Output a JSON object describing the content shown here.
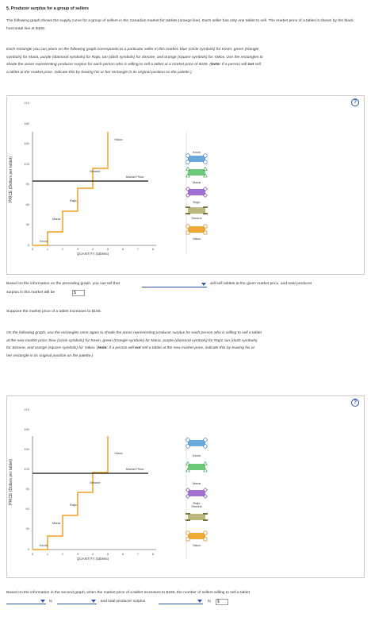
{
  "title": "5. Producer surplus for a group of sellers",
  "intro": "The following graph shows the supply curve for a group of sellers in the Canadian market for tablets (orange line). Each seller has only one tablet to sell. The market price of a tablet is shown by the black horizontal line at $105.",
  "instructions1": {
    "line1": "Each rectangle you can place on the following graph corresponds to a particular seller in this market: blue (circle symbols) for Kevin, green (triangle",
    "line2": "symbols) for Maria, purple (diamond symbols) for Rajiv, tan (dash symbols) for Simone, and orange (square symbols) for Yakov. Use the rectangles to",
    "line3a": "shade the areas representing producer surplus for each person who is willing to sell a tablet at a market price of $105. (",
    "note_label": "Note:",
    "line3b": " If a person will ",
    "not_label": "not",
    "line3c": " sell",
    "line4": "a tablet at the market price, indicate this by leaving his or her rectangle in its original position on the palette.)"
  },
  "help_symbol": "?",
  "graph1": {
    "ylabel": "PRICE (Dollars per tablet)",
    "xlabel": "QUANTITY (tablets)",
    "yticks": [
      "0",
      "30",
      "60",
      "90",
      "120",
      "150",
      "180",
      "210",
      "240"
    ],
    "xticks": [
      "0",
      "1",
      "2",
      "3",
      "4",
      "5",
      "6",
      "7",
      "8"
    ],
    "step_labels": [
      "Kevin",
      "Maria",
      "Rajiv",
      "Simone",
      "Yakov"
    ],
    "market_price_label": "Market Price"
  },
  "graph2": {
    "ylabel": "PRICE (Dollars per tablet)",
    "xlabel": "QUANTITY (tablets)",
    "yticks": [
      "0",
      "30",
      "60",
      "90",
      "120",
      "150",
      "180",
      "210",
      "240"
    ],
    "xticks": [
      "0",
      "1",
      "2",
      "3",
      "4",
      "5",
      "6",
      "7",
      "8"
    ],
    "step_labels": [
      "Kevin",
      "Maria",
      "Rajiv",
      "Simone",
      "Yakov"
    ],
    "market_price_label": "Market Price"
  },
  "palette1": [
    "Kevin",
    "Maria",
    "Rajiv",
    "Simone",
    "Yakov"
  ],
  "palette2": [
    "Kevin",
    "Maria",
    "Rajiv",
    "Simone",
    "Yakov"
  ],
  "colors": {
    "supply": "#f0a020",
    "market": "#111111",
    "kevin": "#5aa0d8",
    "maria": "#5cc56a",
    "rajiv": "#9a5fd0",
    "simone": "#b8b070",
    "yakov": "#f0a020",
    "link": "#2a54a8"
  },
  "q1": {
    "text_a": "Based on the information on the preceding graph, you can tell that",
    "text_b": "will sell tablets at the given market price, and total producer",
    "text_c": "surplus in this market will be",
    "dollar": "$"
  },
  "suppose": "Suppose the market price of a tablet increases to $165.",
  "instructions2": {
    "line1": "On the following graph, use the rectangles once again to shade the areas representing producer surplus for each person who is willing to sell a tablet",
    "line2": "at the new market price: blue (circle symbols) for Kevin, green (triangle symbols) for Maria, purple (diamond symbols) for Rajiv, tan (dash symbols)",
    "line3a": "for Simone, and orange (square symbols) for Yakov. (",
    "note_label": "Note:",
    "line3b": " If a person will ",
    "not_label": "not",
    "line3c": " sell a tablet at the new market price, indicate this by leaving his or",
    "line4": "her rectangle in its original position on the palette.)"
  },
  "q2": {
    "text_a": "Based on the information in the second graph, when the market price of a tablet increases to $165, the number of sellers willing to sell a tablet",
    "to1": "to",
    "text_b": ", and total producer surplus",
    "to2": "to",
    "dollar": "$"
  }
}
